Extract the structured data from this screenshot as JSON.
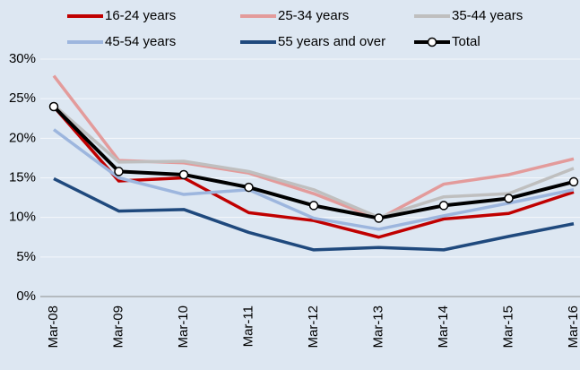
{
  "chart_data": {
    "type": "line",
    "categories": [
      "Mar-08",
      "Mar-09",
      "Mar-10",
      "Mar-11",
      "Mar-12",
      "Mar-13",
      "Mar-14",
      "Mar-15",
      "Mar-16"
    ],
    "series": [
      {
        "name": "16-24 years",
        "color": "#c00000",
        "values": [
          24.0,
          14.6,
          15.0,
          10.6,
          9.6,
          7.5,
          9.8,
          10.5,
          13.2
        ]
      },
      {
        "name": "25-34 years",
        "color": "#e39b9b",
        "values": [
          27.9,
          17.2,
          16.9,
          15.6,
          13.0,
          9.8,
          14.2,
          15.4,
          17.4
        ]
      },
      {
        "name": "35-44 years",
        "color": "#bfbfbf",
        "values": [
          24.2,
          17.0,
          17.1,
          15.8,
          13.5,
          10.0,
          12.6,
          13.0,
          16.2
        ]
      },
      {
        "name": "45-54 years",
        "color": "#9db6de",
        "values": [
          21.1,
          15.0,
          12.9,
          13.5,
          9.9,
          8.5,
          10.2,
          11.8,
          13.5
        ]
      },
      {
        "name": "55 years and over",
        "color": "#1f497d",
        "values": [
          14.9,
          10.8,
          11.0,
          8.1,
          5.9,
          6.2,
          5.9,
          7.6,
          9.2
        ]
      },
      {
        "name": "Total",
        "color": "#000000",
        "marker": "circle",
        "values": [
          24.0,
          15.8,
          15.4,
          13.8,
          11.5,
          9.9,
          11.5,
          12.4,
          14.5
        ]
      }
    ],
    "ylim": [
      0,
      30
    ],
    "yticks": [
      {
        "value": 0,
        "label": "0%"
      },
      {
        "value": 5,
        "label": "5%"
      },
      {
        "value": 10,
        "label": "10%"
      },
      {
        "value": 15,
        "label": "15%"
      },
      {
        "value": 20,
        "label": "20%"
      },
      {
        "value": 25,
        "label": "25%"
      },
      {
        "value": 30,
        "label": "30%"
      }
    ],
    "grid": true
  }
}
